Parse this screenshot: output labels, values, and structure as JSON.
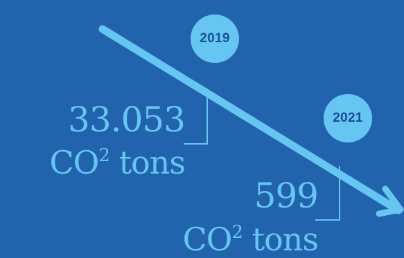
{
  "colors": {
    "background": "#2263ad",
    "accent": "#66c6f2",
    "badge_text": "#1a4f96"
  },
  "milestones": [
    {
      "year": "2019",
      "value": "33.053",
      "unit_main": "CO",
      "unit_sup": "2",
      "unit_rest": " tons"
    },
    {
      "year": "2021",
      "value": "599",
      "unit_main": "CO",
      "unit_sup": "2",
      "unit_rest": " tons"
    }
  ]
}
